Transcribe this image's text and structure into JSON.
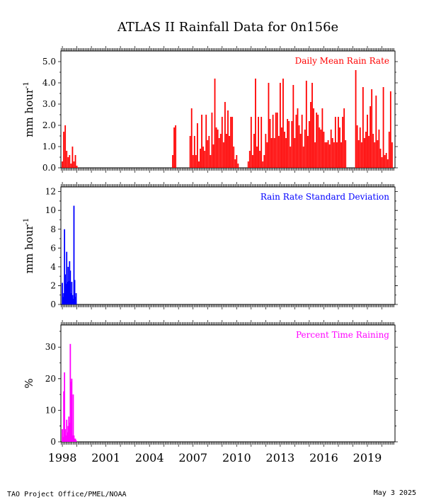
{
  "chart_data": {
    "title": "ATLAS II Rainfall Data for 0n156e",
    "footer_left": "TAO Project Office/PMEL/NOAA",
    "footer_right": "May  3 2025",
    "x_axis": {
      "ticks": [
        "1998",
        "2001",
        "2004",
        "2007",
        "2010",
        "2013",
        "2016",
        "2019"
      ],
      "range": [
        1997.9,
        2020.9
      ]
    },
    "panels": [
      {
        "type": "bar",
        "label": "Daily Mean Rain Rate",
        "ylabel_main": "mm hour",
        "ylabel_sup": "-1",
        "color": "#ff0000",
        "ylim": [
          0,
          5.5
        ],
        "yticks": [
          "0.0",
          "1.0",
          "2.0",
          "3.0",
          "4.0",
          "5.0"
        ],
        "x": [
          1998.0,
          1998.1,
          1998.2,
          1998.3,
          1998.4,
          1998.5,
          1998.6,
          1998.7,
          1998.8,
          1998.9,
          1999.0,
          1999.1,
          1999.2,
          1999.3,
          1999.4,
          2005.6,
          2005.7,
          2005.8,
          2006.8,
          2006.9,
          2007.0,
          2007.1,
          2007.2,
          2007.3,
          2007.4,
          2007.5,
          2007.6,
          2007.7,
          2007.8,
          2007.9,
          2008.0,
          2008.1,
          2008.2,
          2008.3,
          2008.4,
          2008.5,
          2008.6,
          2008.7,
          2008.8,
          2008.9,
          2009.0,
          2009.1,
          2009.2,
          2009.3,
          2009.4,
          2009.5,
          2009.6,
          2009.7,
          2009.8,
          2009.9,
          2010.0,
          2010.1,
          2010.2,
          2010.8,
          2010.9,
          2011.0,
          2011.1,
          2011.2,
          2011.3,
          2011.4,
          2011.5,
          2011.6,
          2011.7,
          2011.8,
          2011.9,
          2012.0,
          2012.1,
          2012.2,
          2012.3,
          2012.4,
          2012.5,
          2012.6,
          2012.7,
          2012.8,
          2012.9,
          2013.0,
          2013.1,
          2013.2,
          2013.3,
          2013.4,
          2013.5,
          2013.6,
          2013.7,
          2013.8,
          2013.9,
          2014.0,
          2014.1,
          2014.2,
          2014.3,
          2014.4,
          2014.5,
          2014.6,
          2014.7,
          2014.8,
          2014.9,
          2015.0,
          2015.1,
          2015.2,
          2015.3,
          2015.4,
          2015.5,
          2015.6,
          2015.7,
          2015.8,
          2015.9,
          2016.0,
          2016.1,
          2016.2,
          2016.3,
          2016.4,
          2016.5,
          2016.6,
          2016.7,
          2016.8,
          2016.9,
          2017.0,
          2017.1,
          2017.2,
          2017.3,
          2017.4,
          2017.5,
          2018.2,
          2018.3,
          2018.4,
          2018.5,
          2018.6,
          2018.7,
          2018.8,
          2018.9,
          2019.0,
          2019.1,
          2019.2,
          2019.3,
          2019.4,
          2019.5,
          2019.6,
          2019.7,
          2019.8,
          2019.9,
          2020.0,
          2020.1,
          2020.2,
          2020.3,
          2020.4,
          2020.5,
          2020.6,
          2020.7
        ],
        "values": [
          0.3,
          1.7,
          2.0,
          0.8,
          0.5,
          0.6,
          0.2,
          1.0,
          0.3,
          0.6,
          0.1,
          0.0,
          0.0,
          0.0,
          0.0,
          0.6,
          1.9,
          2.0,
          1.5,
          2.8,
          0.6,
          1.5,
          0.6,
          2.1,
          0.3,
          0.9,
          2.5,
          1.0,
          0.8,
          2.5,
          1.3,
          1.5,
          0.6,
          2.6,
          1.1,
          4.2,
          1.9,
          1.8,
          1.4,
          1.6,
          2.4,
          1.2,
          3.1,
          1.6,
          2.7,
          1.5,
          2.4,
          2.4,
          1.0,
          0.4,
          0.6,
          0.2,
          0.0,
          0.3,
          0.8,
          2.4,
          0.6,
          1.6,
          4.2,
          1.0,
          2.4,
          0.8,
          2.4,
          0.3,
          0.6,
          1.6,
          1.2,
          4.0,
          2.3,
          1.4,
          2.5,
          1.4,
          2.6,
          2.6,
          1.5,
          4.0,
          1.9,
          4.2,
          1.7,
          1.4,
          2.3,
          2.2,
          1.0,
          2.2,
          3.9,
          1.4,
          2.5,
          2.8,
          2.0,
          1.6,
          2.5,
          1.0,
          1.8,
          4.1,
          1.5,
          2.2,
          3.1,
          4.0,
          2.8,
          1.2,
          2.6,
          2.5,
          1.9,
          1.8,
          2.8,
          1.7,
          1.2,
          1.2,
          1.3,
          1.1,
          1.8,
          1.4,
          1.2,
          2.4,
          1.2,
          2.4,
          1.9,
          1.2,
          2.4,
          2.8,
          1.3,
          4.6,
          2.0,
          1.3,
          1.9,
          1.2,
          3.8,
          1.4,
          1.7,
          2.5,
          1.5,
          2.9,
          3.7,
          1.6,
          1.2,
          3.4,
          1.3,
          1.8,
          0.9,
          0.5,
          3.8,
          0.6,
          0.7,
          0.4,
          1.7,
          3.6,
          1.2
        ]
      },
      {
        "type": "bar",
        "label": "Rain Rate Standard Deviation",
        "ylabel_main": "mm hour",
        "ylabel_sup": "-1",
        "color": "#0000ff",
        "ylim": [
          0,
          12.5
        ],
        "yticks": [
          "0",
          "2",
          "4",
          "6",
          "8",
          "10",
          "12"
        ],
        "x": [
          1998.0,
          1998.05,
          1998.1,
          1998.15,
          1998.2,
          1998.25,
          1998.3,
          1998.35,
          1998.4,
          1998.45,
          1998.5,
          1998.55,
          1998.6,
          1998.65,
          1998.7,
          1998.75,
          1998.8,
          1998.85,
          1998.9,
          1998.95
        ],
        "values": [
          2.3,
          0.8,
          1.2,
          8.0,
          3.2,
          2.2,
          5.6,
          2.4,
          4.0,
          2.5,
          4.6,
          3.6,
          1.2,
          2.4,
          1.0,
          0.6,
          10.5,
          2.6,
          0.8,
          1.2
        ]
      },
      {
        "type": "bar",
        "label": "Percent Time Raining",
        "ylabel_main": "%",
        "ylabel_sup": "",
        "color": "#ff00ff",
        "ylim": [
          0,
          37
        ],
        "yticks": [
          "0",
          "10",
          "20",
          "30"
        ],
        "x": [
          1998.0,
          1998.05,
          1998.1,
          1998.15,
          1998.2,
          1998.25,
          1998.3,
          1998.35,
          1998.4,
          1998.45,
          1998.5,
          1998.55,
          1998.6,
          1998.65,
          1998.7,
          1998.75,
          1998.8,
          1998.85,
          1998.9,
          1998.95
        ],
        "values": [
          4.0,
          1.5,
          16.0,
          22.0,
          4.0,
          2.0,
          7.0,
          3.0,
          5.0,
          8.0,
          6.0,
          31.0,
          19.0,
          20.0,
          2.0,
          15.0,
          2.0,
          1.0,
          1.0,
          0.5
        ]
      }
    ]
  }
}
